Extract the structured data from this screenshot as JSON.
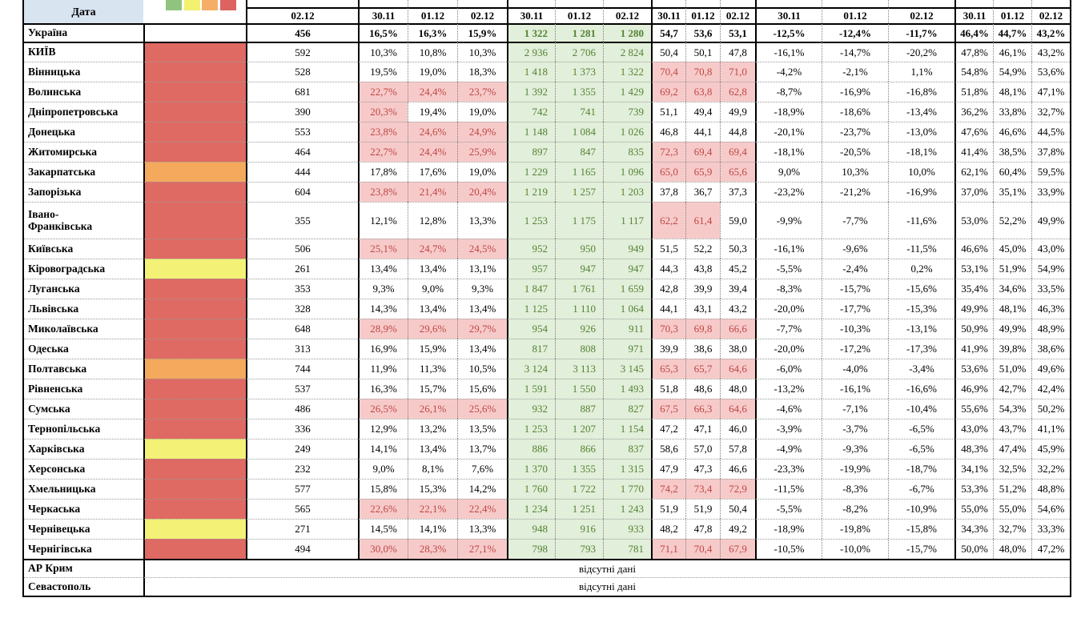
{
  "report": {
    "header": {
      "date_label": "Дата",
      "count_date": "02.12",
      "group_dates": [
        "30.11",
        "01.12",
        "02.12"
      ]
    },
    "legend": {
      "colors": [
        "#90C47E",
        "#F2F170",
        "#F5AE67",
        "#DC6360"
      ],
      "names": [
        "legend-green-icon",
        "legend-yellow-icon",
        "legend-orange-icon",
        "legend-red-icon"
      ]
    },
    "colors": {
      "red": "#DF6A63",
      "orange": "#F4A95C",
      "yellow": "#F3F176",
      "pink_bg": "#F7CACA",
      "pink_text": "#BD4743",
      "green_bg": "#E2EFDA",
      "green_text": "#548235",
      "header_blue": "#D9E4F1"
    },
    "no_data_text": "відсутні дані",
    "rows": [
      {
        "name": "Україна",
        "swatch": null,
        "bold": true,
        "count": "456",
        "pct1": [
          "16,5%",
          "16,3%",
          "15,9%"
        ],
        "pct1_hl": [
          false,
          false,
          false
        ],
        "abs": [
          "1 322",
          "1 281",
          "1 280"
        ],
        "num": [
          "54,7",
          "53,6",
          "53,1"
        ],
        "num_hl": [
          false,
          false,
          false
        ],
        "pct2": [
          "-12,5%",
          "-12,4%",
          "-11,7%"
        ],
        "pct3": [
          "46,4%",
          "44,7%",
          "43,2%"
        ]
      },
      {
        "name": "КИЇВ",
        "swatch": "red",
        "count": "592",
        "pct1": [
          "10,3%",
          "10,8%",
          "10,3%"
        ],
        "pct1_hl": [
          false,
          false,
          false
        ],
        "abs": [
          "2 936",
          "2 706",
          "2 824"
        ],
        "num": [
          "50,4",
          "50,1",
          "47,8"
        ],
        "num_hl": [
          false,
          false,
          false
        ],
        "pct2": [
          "-16,1%",
          "-14,7%",
          "-20,2%"
        ],
        "pct3": [
          "47,8%",
          "46,1%",
          "43,2%"
        ]
      },
      {
        "name": "Вінницька",
        "swatch": "red",
        "count": "528",
        "pct1": [
          "19,5%",
          "19,0%",
          "18,3%"
        ],
        "pct1_hl": [
          false,
          false,
          false
        ],
        "abs": [
          "1 418",
          "1 373",
          "1 322"
        ],
        "num": [
          "70,4",
          "70,8",
          "71,0"
        ],
        "num_hl": [
          true,
          true,
          true
        ],
        "pct2": [
          "-4,2%",
          "-2,1%",
          "1,1%"
        ],
        "pct3": [
          "54,8%",
          "54,9%",
          "53,6%"
        ]
      },
      {
        "name": "Волинська",
        "swatch": "red",
        "count": "681",
        "pct1": [
          "22,7%",
          "24,4%",
          "23,7%"
        ],
        "pct1_hl": [
          true,
          true,
          true
        ],
        "abs": [
          "1 392",
          "1 355",
          "1 429"
        ],
        "num": [
          "69,2",
          "63,8",
          "62,8"
        ],
        "num_hl": [
          true,
          true,
          true
        ],
        "pct2": [
          "-8,7%",
          "-16,9%",
          "-16,8%"
        ],
        "pct3": [
          "51,8%",
          "48,1%",
          "47,1%"
        ]
      },
      {
        "name": "Дніпропетровська",
        "swatch": "red",
        "count": "390",
        "pct1": [
          "20,3%",
          "19,4%",
          "19,0%"
        ],
        "pct1_hl": [
          true,
          false,
          false
        ],
        "abs": [
          "742",
          "741",
          "739"
        ],
        "num": [
          "51,1",
          "49,4",
          "49,9"
        ],
        "num_hl": [
          false,
          false,
          false
        ],
        "pct2": [
          "-18,9%",
          "-18,6%",
          "-13,4%"
        ],
        "pct3": [
          "36,2%",
          "33,8%",
          "32,7%"
        ]
      },
      {
        "name": "Донецька",
        "swatch": "red",
        "count": "553",
        "pct1": [
          "23,8%",
          "24,6%",
          "24,9%"
        ],
        "pct1_hl": [
          true,
          true,
          true
        ],
        "abs": [
          "1 148",
          "1 084",
          "1 026"
        ],
        "num": [
          "46,8",
          "44,1",
          "44,8"
        ],
        "num_hl": [
          false,
          false,
          false
        ],
        "pct2": [
          "-20,1%",
          "-23,7%",
          "-13,0%"
        ],
        "pct3": [
          "47,6%",
          "46,6%",
          "44,5%"
        ]
      },
      {
        "name": "Житомирська",
        "swatch": "red",
        "count": "464",
        "pct1": [
          "22,7%",
          "24,4%",
          "25,9%"
        ],
        "pct1_hl": [
          true,
          true,
          true
        ],
        "abs": [
          "897",
          "847",
          "835"
        ],
        "num": [
          "72,3",
          "69,4",
          "69,4"
        ],
        "num_hl": [
          true,
          true,
          true
        ],
        "pct2": [
          "-18,1%",
          "-20,5%",
          "-18,1%"
        ],
        "pct3": [
          "41,4%",
          "38,5%",
          "37,8%"
        ]
      },
      {
        "name": "Закарпатська",
        "swatch": "orange",
        "count": "444",
        "pct1": [
          "17,8%",
          "17,6%",
          "19,0%"
        ],
        "pct1_hl": [
          false,
          false,
          false
        ],
        "abs": [
          "1 229",
          "1 165",
          "1 096"
        ],
        "num": [
          "65,0",
          "65,9",
          "65,6"
        ],
        "num_hl": [
          true,
          true,
          true
        ],
        "pct2": [
          "9,0%",
          "10,3%",
          "10,0%"
        ],
        "pct3": [
          "62,1%",
          "60,4%",
          "59,5%"
        ]
      },
      {
        "name": "Запорізька",
        "swatch": "red",
        "count": "604",
        "pct1": [
          "23,8%",
          "21,4%",
          "20,4%"
        ],
        "pct1_hl": [
          true,
          true,
          true
        ],
        "abs": [
          "1 219",
          "1 257",
          "1 203"
        ],
        "num": [
          "37,8",
          "36,7",
          "37,3"
        ],
        "num_hl": [
          false,
          false,
          false
        ],
        "pct2": [
          "-23,2%",
          "-21,2%",
          "-16,9%"
        ],
        "pct3": [
          "37,0%",
          "35,1%",
          "33,9%"
        ]
      },
      {
        "name": "Івано-\nФранківська",
        "swatch": "red",
        "tall": true,
        "count": "355",
        "pct1": [
          "12,1%",
          "12,8%",
          "13,3%"
        ],
        "pct1_hl": [
          false,
          false,
          false
        ],
        "abs": [
          "1 253",
          "1 175",
          "1 117"
        ],
        "num": [
          "62,2",
          "61,4",
          "59,0"
        ],
        "num_hl": [
          true,
          true,
          false
        ],
        "pct2": [
          "-9,9%",
          "-7,7%",
          "-11,6%"
        ],
        "pct3": [
          "53,0%",
          "52,2%",
          "49,9%"
        ]
      },
      {
        "name": "Київська",
        "swatch": "red",
        "count": "506",
        "pct1": [
          "25,1%",
          "24,7%",
          "24,5%"
        ],
        "pct1_hl": [
          true,
          true,
          true
        ],
        "abs": [
          "952",
          "950",
          "949"
        ],
        "num": [
          "51,5",
          "52,2",
          "50,3"
        ],
        "num_hl": [
          false,
          false,
          false
        ],
        "pct2": [
          "-16,1%",
          "-9,6%",
          "-11,5%"
        ],
        "pct3": [
          "46,6%",
          "45,0%",
          "43,0%"
        ]
      },
      {
        "name": "Кіровоградська",
        "swatch": "yellow",
        "count": "261",
        "pct1": [
          "13,4%",
          "13,4%",
          "13,1%"
        ],
        "pct1_hl": [
          false,
          false,
          false
        ],
        "abs": [
          "957",
          "947",
          "947"
        ],
        "num": [
          "44,3",
          "43,8",
          "45,2"
        ],
        "num_hl": [
          false,
          false,
          false
        ],
        "pct2": [
          "-5,5%",
          "-2,4%",
          "0,2%"
        ],
        "pct3": [
          "53,1%",
          "51,9%",
          "54,9%"
        ]
      },
      {
        "name": "Луганська",
        "swatch": "red",
        "count": "353",
        "pct1": [
          "9,3%",
          "9,0%",
          "9,3%"
        ],
        "pct1_hl": [
          false,
          false,
          false
        ],
        "abs": [
          "1 847",
          "1 761",
          "1 659"
        ],
        "num": [
          "42,8",
          "39,9",
          "39,4"
        ],
        "num_hl": [
          false,
          false,
          false
        ],
        "pct2": [
          "-8,3%",
          "-15,7%",
          "-15,6%"
        ],
        "pct3": [
          "35,4%",
          "34,6%",
          "33,5%"
        ]
      },
      {
        "name": "Львівська",
        "swatch": "red",
        "count": "328",
        "pct1": [
          "14,3%",
          "13,4%",
          "13,4%"
        ],
        "pct1_hl": [
          false,
          false,
          false
        ],
        "abs": [
          "1 125",
          "1 110",
          "1 064"
        ],
        "num": [
          "44,1",
          "43,1",
          "43,2"
        ],
        "num_hl": [
          false,
          false,
          false
        ],
        "pct2": [
          "-20,0%",
          "-17,7%",
          "-15,3%"
        ],
        "pct3": [
          "49,9%",
          "48,1%",
          "46,3%"
        ]
      },
      {
        "name": "Миколаївська",
        "swatch": "red",
        "count": "648",
        "pct1": [
          "28,9%",
          "29,6%",
          "29,7%"
        ],
        "pct1_hl": [
          true,
          true,
          true
        ],
        "abs": [
          "954",
          "926",
          "911"
        ],
        "num": [
          "70,3",
          "69,8",
          "66,6"
        ],
        "num_hl": [
          true,
          true,
          true
        ],
        "pct2": [
          "-7,7%",
          "-10,3%",
          "-13,1%"
        ],
        "pct3": [
          "50,9%",
          "49,9%",
          "48,9%"
        ]
      },
      {
        "name": "Одеська",
        "swatch": "red",
        "count": "313",
        "pct1": [
          "16,9%",
          "15,9%",
          "13,4%"
        ],
        "pct1_hl": [
          false,
          false,
          false
        ],
        "abs": [
          "817",
          "808",
          "971"
        ],
        "num": [
          "39,9",
          "38,6",
          "38,0"
        ],
        "num_hl": [
          false,
          false,
          false
        ],
        "pct2": [
          "-20,0%",
          "-17,2%",
          "-17,3%"
        ],
        "pct3": [
          "41,9%",
          "39,8%",
          "38,6%"
        ]
      },
      {
        "name": "Полтавська",
        "swatch": "orange",
        "count": "744",
        "pct1": [
          "11,9%",
          "11,3%",
          "10,5%"
        ],
        "pct1_hl": [
          false,
          false,
          false
        ],
        "abs": [
          "3 124",
          "3 113",
          "3 145"
        ],
        "num": [
          "65,3",
          "65,7",
          "64,6"
        ],
        "num_hl": [
          true,
          true,
          true
        ],
        "pct2": [
          "-6,0%",
          "-4,0%",
          "-3,4%"
        ],
        "pct3": [
          "53,6%",
          "51,0%",
          "49,6%"
        ]
      },
      {
        "name": "Рівненська",
        "swatch": "red",
        "count": "537",
        "pct1": [
          "16,3%",
          "15,7%",
          "15,6%"
        ],
        "pct1_hl": [
          false,
          false,
          false
        ],
        "abs": [
          "1 591",
          "1 550",
          "1 493"
        ],
        "num": [
          "51,8",
          "48,6",
          "48,0"
        ],
        "num_hl": [
          false,
          false,
          false
        ],
        "pct2": [
          "-13,2%",
          "-16,1%",
          "-16,6%"
        ],
        "pct3": [
          "46,9%",
          "42,7%",
          "42,4%"
        ]
      },
      {
        "name": "Сумська",
        "swatch": "red",
        "count": "486",
        "pct1": [
          "26,5%",
          "26,1%",
          "25,6%"
        ],
        "pct1_hl": [
          true,
          true,
          true
        ],
        "abs": [
          "932",
          "887",
          "827"
        ],
        "num": [
          "67,5",
          "66,3",
          "64,6"
        ],
        "num_hl": [
          true,
          true,
          true
        ],
        "pct2": [
          "-4,6%",
          "-7,1%",
          "-10,4%"
        ],
        "pct3": [
          "55,6%",
          "54,3%",
          "50,2%"
        ]
      },
      {
        "name": "Тернопільська",
        "swatch": "red",
        "count": "336",
        "pct1": [
          "12,9%",
          "13,2%",
          "13,5%"
        ],
        "pct1_hl": [
          false,
          false,
          false
        ],
        "abs": [
          "1 253",
          "1 207",
          "1 154"
        ],
        "num": [
          "47,2",
          "47,1",
          "46,0"
        ],
        "num_hl": [
          false,
          false,
          false
        ],
        "pct2": [
          "-3,9%",
          "-3,7%",
          "-6,5%"
        ],
        "pct3": [
          "43,0%",
          "43,7%",
          "41,1%"
        ]
      },
      {
        "name": "Харківська",
        "swatch": "yellow",
        "count": "249",
        "pct1": [
          "14,1%",
          "13,4%",
          "13,7%"
        ],
        "pct1_hl": [
          false,
          false,
          false
        ],
        "abs": [
          "886",
          "866",
          "837"
        ],
        "num": [
          "58,6",
          "57,0",
          "57,8"
        ],
        "num_hl": [
          false,
          false,
          false
        ],
        "pct2": [
          "-4,9%",
          "-9,3%",
          "-6,5%"
        ],
        "pct3": [
          "48,3%",
          "47,4%",
          "45,9%"
        ]
      },
      {
        "name": "Херсонська",
        "swatch": "red",
        "count": "232",
        "pct1": [
          "9,0%",
          "8,1%",
          "7,6%"
        ],
        "pct1_hl": [
          false,
          false,
          false
        ],
        "abs": [
          "1 370",
          "1 355",
          "1 315"
        ],
        "num": [
          "47,9",
          "47,3",
          "46,6"
        ],
        "num_hl": [
          false,
          false,
          false
        ],
        "pct2": [
          "-23,3%",
          "-19,9%",
          "-18,7%"
        ],
        "pct3": [
          "34,1%",
          "32,5%",
          "32,2%"
        ]
      },
      {
        "name": "Хмельницька",
        "swatch": "red",
        "count": "577",
        "pct1": [
          "15,8%",
          "15,3%",
          "14,2%"
        ],
        "pct1_hl": [
          false,
          false,
          false
        ],
        "abs": [
          "1 760",
          "1 722",
          "1 770"
        ],
        "num": [
          "74,2",
          "73,4",
          "72,9"
        ],
        "num_hl": [
          true,
          true,
          true
        ],
        "pct2": [
          "-11,5%",
          "-8,3%",
          "-6,7%"
        ],
        "pct3": [
          "53,3%",
          "51,2%",
          "48,8%"
        ]
      },
      {
        "name": "Черкаська",
        "swatch": "red",
        "count": "565",
        "pct1": [
          "22,6%",
          "22,1%",
          "22,4%"
        ],
        "pct1_hl": [
          true,
          true,
          true
        ],
        "abs": [
          "1 234",
          "1 251",
          "1 243"
        ],
        "num": [
          "51,9",
          "51,9",
          "50,4"
        ],
        "num_hl": [
          false,
          false,
          false
        ],
        "pct2": [
          "-5,5%",
          "-8,2%",
          "-10,9%"
        ],
        "pct3": [
          "55,0%",
          "55,0%",
          "54,6%"
        ]
      },
      {
        "name": "Чернівецька",
        "swatch": "yellow",
        "count": "271",
        "pct1": [
          "14,5%",
          "14,1%",
          "13,3%"
        ],
        "pct1_hl": [
          false,
          false,
          false
        ],
        "abs": [
          "948",
          "916",
          "933"
        ],
        "num": [
          "48,2",
          "47,8",
          "49,2"
        ],
        "num_hl": [
          false,
          false,
          false
        ],
        "pct2": [
          "-18,9%",
          "-19,8%",
          "-15,8%"
        ],
        "pct3": [
          "34,3%",
          "32,7%",
          "33,3%"
        ]
      },
      {
        "name": "Чернігівська",
        "swatch": "red",
        "count": "494",
        "pct1": [
          "30,0%",
          "28,3%",
          "27,1%"
        ],
        "pct1_hl": [
          true,
          true,
          true
        ],
        "abs": [
          "798",
          "793",
          "781"
        ],
        "num": [
          "71,1",
          "70,4",
          "67,9"
        ],
        "num_hl": [
          true,
          true,
          true
        ],
        "pct2": [
          "-10,5%",
          "-10,0%",
          "-15,7%"
        ],
        "pct3": [
          "50,0%",
          "48,0%",
          "47,2%"
        ]
      },
      {
        "name": "АР Крим",
        "no_data": true
      },
      {
        "name": "Севастополь",
        "no_data": true
      }
    ]
  }
}
